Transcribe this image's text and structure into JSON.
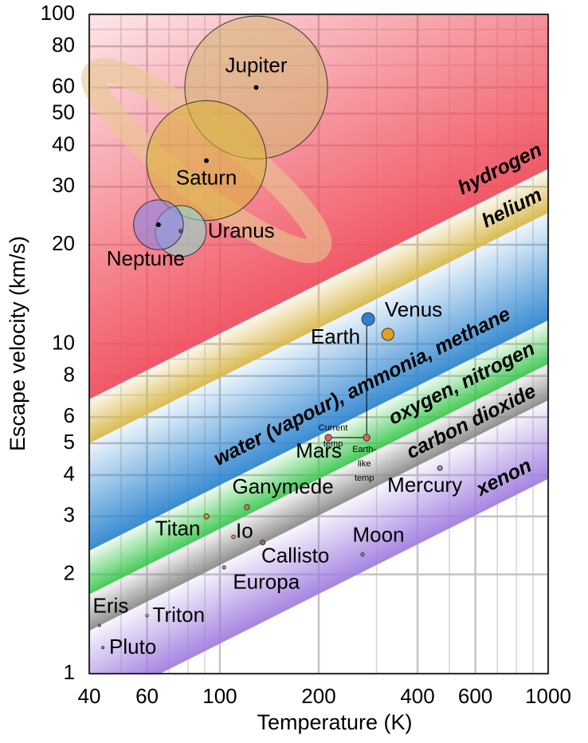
{
  "chart_data": {
    "type": "bubble",
    "xlabel": "Temperature (K)",
    "ylabel": "Escape velocity (km/s)",
    "xlog": true,
    "ylog": true,
    "grid": true,
    "xlim": [
      40,
      1000
    ],
    "ylim": [
      1,
      100
    ],
    "xticks": [
      40,
      60,
      100,
      200,
      400,
      600,
      1000
    ],
    "yticks": [
      1,
      2,
      3,
      4,
      5,
      6,
      8,
      10,
      20,
      30,
      40,
      50,
      60,
      80,
      100
    ],
    "x_minor_ticks": [
      50,
      70,
      80,
      90,
      300,
      500,
      700,
      800,
      900
    ],
    "y_minor_ticks": [
      7,
      9,
      70,
      90
    ],
    "band_slope": 0.5,
    "bands": [
      {
        "name": "hydrogen",
        "color": "#f0505f",
        "edge_at_xmax": 34
      },
      {
        "name": "helium",
        "color": "#d8b84a",
        "edge_at_xmax": 25
      },
      {
        "name": "water (vapour), ammonia, methane",
        "color": "#2f86d0",
        "edge_at_xmax": 11.8
      },
      {
        "name": "oxygen, nitrogen",
        "color": "#3cc850",
        "edge_at_xmax": 8.7
      },
      {
        "name": "carbon dioxide",
        "color": "#8a8a8a",
        "edge_at_xmax": 6.75
      },
      {
        "name": "xenon",
        "color": "#a17ee0",
        "edge_at_xmax": 3.9
      }
    ],
    "bodies": [
      {
        "name": "Jupiter",
        "x": 129,
        "y": 60,
        "size": 11.2,
        "color": "#d6b878"
      },
      {
        "name": "Saturn",
        "x": 91,
        "y": 36,
        "size": 9.4,
        "color": "#dcb040"
      },
      {
        "name": "Uranus",
        "x": 76,
        "y": 22,
        "size": 4,
        "color": "#8fd8d0"
      },
      {
        "name": "Neptune",
        "x": 65,
        "y": 23,
        "size": 3.9,
        "color": "#8a84e8"
      },
      {
        "name": "Earth",
        "x": 283,
        "y": 11.9,
        "size": 1,
        "color": "#2f7fd0"
      },
      {
        "name": "Venus",
        "x": 325,
        "y": 10.7,
        "size": 0.95,
        "color": "#e0a020"
      },
      {
        "name": "Mars",
        "x": 214,
        "x2": 280,
        "y": 5.2,
        "size": 0.53,
        "color": "#e06060"
      },
      {
        "name": "Mercury",
        "x": 468,
        "y": 4.2,
        "size": 0.38,
        "color": "#a0a0a0"
      },
      {
        "name": "Ganymede",
        "x": 121,
        "y": 3.2,
        "size": 0.41,
        "color": "#c08850"
      },
      {
        "name": "Titan",
        "x": 91,
        "y": 3,
        "size": 0.4,
        "color": "#e09030"
      },
      {
        "name": "Io",
        "x": 110,
        "y": 2.6,
        "size": 0.29,
        "color": "#d0a040"
      },
      {
        "name": "Callisto",
        "x": 135,
        "y": 2.5,
        "size": 0.38,
        "color": "#a07040"
      },
      {
        "name": "Moon",
        "x": 272,
        "y": 2.3,
        "size": 0.27,
        "color": "#909090"
      },
      {
        "name": "Europa",
        "x": 103,
        "y": 2.1,
        "size": 0.25,
        "color": "#c0a080"
      },
      {
        "name": "Eris",
        "x": 43,
        "y": 1.4,
        "size": 0.18,
        "color": "#c0c0c0"
      },
      {
        "name": "Triton",
        "x": 60,
        "y": 1.5,
        "size": 0.21,
        "color": "#c0c0c0"
      },
      {
        "name": "Pluto",
        "x": 44,
        "y": 1.2,
        "size": 0.19,
        "color": "#c0a080"
      }
    ],
    "current_temp_label": [
      "Current",
      "temp"
    ],
    "earthlike_temp_label": [
      "Earth-",
      "like",
      "temp"
    ]
  }
}
